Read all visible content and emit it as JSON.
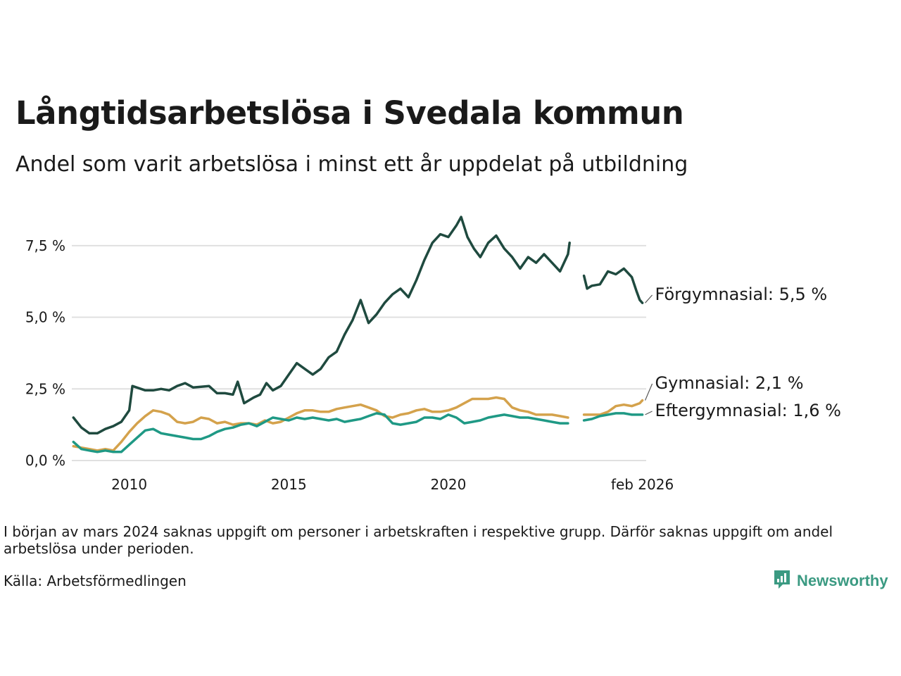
{
  "title": "Långtidsarbetslösa i Svedala kommun",
  "subtitle": "Andel som varit arbetslösa i minst ett år uppdelat på utbildning",
  "note": "I början av mars 2024 saknas uppgift om personer i arbetskraften i respektive grupp. Därför saknas uppgift om andel arbetslösa under perioden.",
  "source": "Källa: Arbetsförmedlingen",
  "logo_text": "Newsworthy",
  "icons": {
    "logo": "newsworthy-logo-icon"
  },
  "colors": {
    "forgymnasial": "#1f4a3f",
    "gymnasial": "#d4a24c",
    "eftergymnasial": "#1f9985",
    "grid": "#e0e0e0"
  },
  "chart_data": {
    "type": "line",
    "xlim": [
      2008.2,
      2026.2
    ],
    "ylim": [
      0,
      8.7
    ],
    "x_ticks": [
      2010,
      2015,
      2020,
      2026.08
    ],
    "x_tick_labels": [
      "2010",
      "2015",
      "2020",
      "feb 2026"
    ],
    "y_ticks": [
      0,
      2.5,
      5,
      7.5
    ],
    "y_tick_labels": [
      "0,0 %",
      "2,5 %",
      "5,0 %",
      "7,5 %"
    ],
    "gap": [
      2023.8,
      2024.25
    ],
    "series": [
      {
        "name": "Förgymnasial",
        "label": "Förgymnasial: 5,5 %",
        "color": "#1f4a3f",
        "points": [
          [
            2008.25,
            1.5
          ],
          [
            2008.5,
            1.15
          ],
          [
            2008.75,
            0.95
          ],
          [
            2009.0,
            0.95
          ],
          [
            2009.25,
            1.1
          ],
          [
            2009.5,
            1.2
          ],
          [
            2009.75,
            1.35
          ],
          [
            2010.0,
            1.75
          ],
          [
            2010.1,
            2.6
          ],
          [
            2010.5,
            2.45
          ],
          [
            2010.75,
            2.45
          ],
          [
            2011.0,
            2.5
          ],
          [
            2011.25,
            2.45
          ],
          [
            2011.5,
            2.6
          ],
          [
            2011.75,
            2.7
          ],
          [
            2012.0,
            2.55
          ],
          [
            2012.5,
            2.6
          ],
          [
            2012.75,
            2.35
          ],
          [
            2013.0,
            2.35
          ],
          [
            2013.25,
            2.3
          ],
          [
            2013.4,
            2.75
          ],
          [
            2013.6,
            2.0
          ],
          [
            2013.9,
            2.2
          ],
          [
            2014.1,
            2.3
          ],
          [
            2014.3,
            2.7
          ],
          [
            2014.5,
            2.45
          ],
          [
            2014.75,
            2.6
          ],
          [
            2015.0,
            3.0
          ],
          [
            2015.25,
            3.4
          ],
          [
            2015.5,
            3.2
          ],
          [
            2015.75,
            3.0
          ],
          [
            2016.0,
            3.2
          ],
          [
            2016.25,
            3.6
          ],
          [
            2016.5,
            3.8
          ],
          [
            2016.75,
            4.4
          ],
          [
            2017.0,
            4.9
          ],
          [
            2017.25,
            5.6
          ],
          [
            2017.5,
            4.8
          ],
          [
            2017.75,
            5.1
          ],
          [
            2018.0,
            5.5
          ],
          [
            2018.25,
            5.8
          ],
          [
            2018.5,
            6.0
          ],
          [
            2018.75,
            5.7
          ],
          [
            2019.0,
            6.3
          ],
          [
            2019.25,
            7.0
          ],
          [
            2019.5,
            7.6
          ],
          [
            2019.75,
            7.9
          ],
          [
            2020.0,
            7.8
          ],
          [
            2020.25,
            8.2
          ],
          [
            2020.4,
            8.5
          ],
          [
            2020.6,
            7.8
          ],
          [
            2020.8,
            7.4
          ],
          [
            2021.0,
            7.1
          ],
          [
            2021.25,
            7.6
          ],
          [
            2021.5,
            7.85
          ],
          [
            2021.75,
            7.4
          ],
          [
            2022.0,
            7.1
          ],
          [
            2022.25,
            6.7
          ],
          [
            2022.5,
            7.1
          ],
          [
            2022.75,
            6.9
          ],
          [
            2023.0,
            7.2
          ],
          [
            2023.25,
            6.9
          ],
          [
            2023.5,
            6.6
          ],
          [
            2023.75,
            7.2
          ],
          [
            2023.8,
            7.6
          ],
          [
            2024.25,
            6.45
          ],
          [
            2024.35,
            6.0
          ],
          [
            2024.5,
            6.1
          ],
          [
            2024.75,
            6.15
          ],
          [
            2025.0,
            6.6
          ],
          [
            2025.25,
            6.5
          ],
          [
            2025.5,
            6.7
          ],
          [
            2025.75,
            6.4
          ],
          [
            2025.9,
            5.9
          ],
          [
            2026.0,
            5.6
          ],
          [
            2026.08,
            5.5
          ]
        ]
      },
      {
        "name": "Gymnasial",
        "label": "Gymnasial: 2,1 %",
        "color": "#d4a24c",
        "points": [
          [
            2008.25,
            0.5
          ],
          [
            2008.5,
            0.45
          ],
          [
            2008.75,
            0.4
          ],
          [
            2009.0,
            0.35
          ],
          [
            2009.25,
            0.4
          ],
          [
            2009.5,
            0.35
          ],
          [
            2009.75,
            0.65
          ],
          [
            2010.0,
            1.0
          ],
          [
            2010.25,
            1.3
          ],
          [
            2010.5,
            1.55
          ],
          [
            2010.75,
            1.75
          ],
          [
            2011.0,
            1.7
          ],
          [
            2011.25,
            1.6
          ],
          [
            2011.5,
            1.35
          ],
          [
            2011.75,
            1.3
          ],
          [
            2012.0,
            1.35
          ],
          [
            2012.25,
            1.5
          ],
          [
            2012.5,
            1.45
          ],
          [
            2012.75,
            1.3
          ],
          [
            2013.0,
            1.35
          ],
          [
            2013.25,
            1.25
          ],
          [
            2013.5,
            1.3
          ],
          [
            2013.75,
            1.3
          ],
          [
            2014.0,
            1.25
          ],
          [
            2014.25,
            1.4
          ],
          [
            2014.5,
            1.3
          ],
          [
            2014.75,
            1.35
          ],
          [
            2015.0,
            1.5
          ],
          [
            2015.25,
            1.65
          ],
          [
            2015.5,
            1.75
          ],
          [
            2015.75,
            1.75
          ],
          [
            2016.0,
            1.7
          ],
          [
            2016.25,
            1.7
          ],
          [
            2016.5,
            1.8
          ],
          [
            2016.75,
            1.85
          ],
          [
            2017.0,
            1.9
          ],
          [
            2017.25,
            1.95
          ],
          [
            2017.5,
            1.85
          ],
          [
            2017.75,
            1.75
          ],
          [
            2018.0,
            1.55
          ],
          [
            2018.25,
            1.5
          ],
          [
            2018.5,
            1.6
          ],
          [
            2018.75,
            1.65
          ],
          [
            2019.0,
            1.75
          ],
          [
            2019.25,
            1.8
          ],
          [
            2019.5,
            1.7
          ],
          [
            2019.75,
            1.7
          ],
          [
            2020.0,
            1.75
          ],
          [
            2020.25,
            1.85
          ],
          [
            2020.5,
            2.0
          ],
          [
            2020.75,
            2.15
          ],
          [
            2021.0,
            2.15
          ],
          [
            2021.25,
            2.15
          ],
          [
            2021.5,
            2.2
          ],
          [
            2021.75,
            2.15
          ],
          [
            2022.0,
            1.85
          ],
          [
            2022.25,
            1.75
          ],
          [
            2022.5,
            1.7
          ],
          [
            2022.75,
            1.6
          ],
          [
            2023.0,
            1.6
          ],
          [
            2023.25,
            1.6
          ],
          [
            2023.5,
            1.55
          ],
          [
            2023.75,
            1.5
          ],
          [
            2024.25,
            1.6
          ],
          [
            2024.5,
            1.6
          ],
          [
            2024.75,
            1.6
          ],
          [
            2025.0,
            1.7
          ],
          [
            2025.25,
            1.9
          ],
          [
            2025.5,
            1.95
          ],
          [
            2025.75,
            1.9
          ],
          [
            2026.0,
            2.0
          ],
          [
            2026.08,
            2.1
          ]
        ]
      },
      {
        "name": "Eftergymnasial",
        "label": "Eftergymnasial: 1,6 %",
        "color": "#1f9985",
        "points": [
          [
            2008.25,
            0.65
          ],
          [
            2008.5,
            0.4
          ],
          [
            2008.75,
            0.35
          ],
          [
            2009.0,
            0.3
          ],
          [
            2009.25,
            0.35
          ],
          [
            2009.5,
            0.3
          ],
          [
            2009.75,
            0.3
          ],
          [
            2010.0,
            0.55
          ],
          [
            2010.25,
            0.8
          ],
          [
            2010.5,
            1.05
          ],
          [
            2010.75,
            1.1
          ],
          [
            2011.0,
            0.95
          ],
          [
            2011.25,
            0.9
          ],
          [
            2011.5,
            0.85
          ],
          [
            2011.75,
            0.8
          ],
          [
            2012.0,
            0.75
          ],
          [
            2012.25,
            0.75
          ],
          [
            2012.5,
            0.85
          ],
          [
            2012.75,
            1.0
          ],
          [
            2013.0,
            1.1
          ],
          [
            2013.25,
            1.15
          ],
          [
            2013.5,
            1.25
          ],
          [
            2013.75,
            1.3
          ],
          [
            2014.0,
            1.2
          ],
          [
            2014.25,
            1.35
          ],
          [
            2014.5,
            1.5
          ],
          [
            2014.75,
            1.45
          ],
          [
            2015.0,
            1.4
          ],
          [
            2015.25,
            1.5
          ],
          [
            2015.5,
            1.45
          ],
          [
            2015.75,
            1.5
          ],
          [
            2016.0,
            1.45
          ],
          [
            2016.25,
            1.4
          ],
          [
            2016.5,
            1.45
          ],
          [
            2016.75,
            1.35
          ],
          [
            2017.0,
            1.4
          ],
          [
            2017.25,
            1.45
          ],
          [
            2017.5,
            1.55
          ],
          [
            2017.75,
            1.65
          ],
          [
            2018.0,
            1.6
          ],
          [
            2018.25,
            1.3
          ],
          [
            2018.5,
            1.25
          ],
          [
            2018.75,
            1.3
          ],
          [
            2019.0,
            1.35
          ],
          [
            2019.25,
            1.5
          ],
          [
            2019.5,
            1.5
          ],
          [
            2019.75,
            1.45
          ],
          [
            2020.0,
            1.6
          ],
          [
            2020.25,
            1.5
          ],
          [
            2020.5,
            1.3
          ],
          [
            2020.75,
            1.35
          ],
          [
            2021.0,
            1.4
          ],
          [
            2021.25,
            1.5
          ],
          [
            2021.5,
            1.55
          ],
          [
            2021.75,
            1.6
          ],
          [
            2022.0,
            1.55
          ],
          [
            2022.25,
            1.5
          ],
          [
            2022.5,
            1.5
          ],
          [
            2022.75,
            1.45
          ],
          [
            2023.0,
            1.4
          ],
          [
            2023.25,
            1.35
          ],
          [
            2023.5,
            1.3
          ],
          [
            2023.75,
            1.3
          ],
          [
            2024.25,
            1.4
          ],
          [
            2024.5,
            1.45
          ],
          [
            2024.75,
            1.55
          ],
          [
            2025.0,
            1.6
          ],
          [
            2025.25,
            1.65
          ],
          [
            2025.5,
            1.65
          ],
          [
            2025.75,
            1.6
          ],
          [
            2026.0,
            1.6
          ],
          [
            2026.08,
            1.6
          ]
        ]
      }
    ]
  }
}
